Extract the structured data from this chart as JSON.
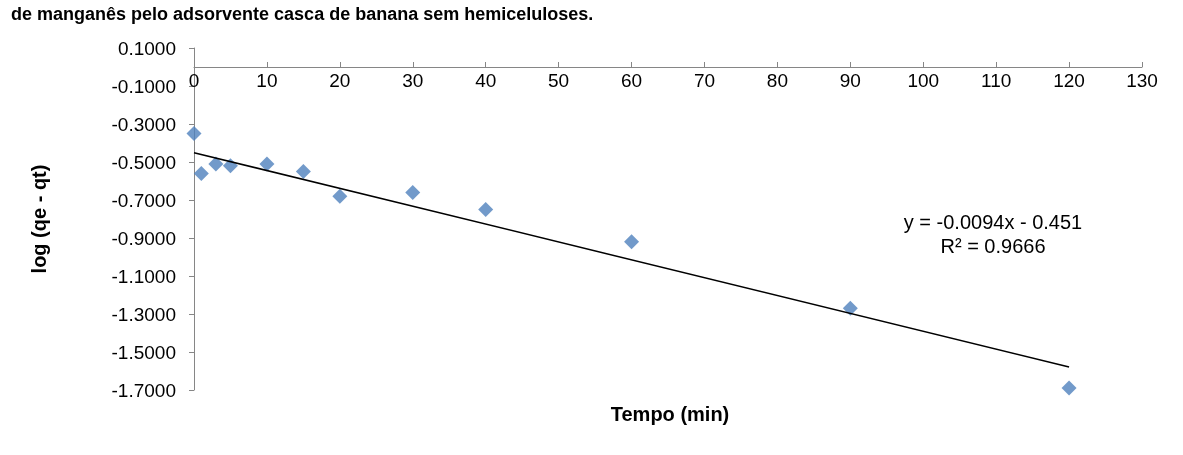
{
  "chart_data": {
    "type": "scatter",
    "title": "de manganês pelo adsorvente casca de banana sem hemiceluloses.",
    "xlabel": "Tempo (min)",
    "ylabel": "log (qe - qt)",
    "series": [
      {
        "type": "scatter",
        "color": "#4f81bd",
        "marker": "diamond",
        "x": [
          0,
          1,
          3,
          5,
          10,
          15,
          20,
          30,
          40,
          60,
          90,
          120
        ],
        "values": [
          -0.35,
          -0.56,
          -0.51,
          -0.52,
          -0.51,
          -0.55,
          -0.68,
          -0.66,
          -0.75,
          -0.92,
          -1.27,
          -1.69
        ]
      },
      {
        "type": "line",
        "color": "#000000",
        "marker": "none",
        "line_style": "solid",
        "x": [
          0,
          120
        ],
        "values": [
          -0.451,
          -1.579
        ]
      }
    ],
    "xlim": [
      0,
      130
    ],
    "xticks": [
      0,
      10,
      20,
      30,
      40,
      50,
      60,
      70,
      80,
      90,
      100,
      110,
      120,
      130
    ],
    "ylim": [
      -1.7,
      0.1
    ],
    "yticks": [
      {
        "value": 0.1,
        "label": "0.1000"
      },
      {
        "value": -0.1,
        "label": "-0.1000"
      },
      {
        "value": -0.3,
        "label": "-0.3000"
      },
      {
        "value": -0.5,
        "label": "-0.5000"
      },
      {
        "value": -0.7,
        "label": "-0.7000"
      },
      {
        "value": -0.9,
        "label": "-0.9000"
      },
      {
        "value": -1.1,
        "label": "-1.1000"
      },
      {
        "value": -1.3,
        "label": "-1.3000"
      },
      {
        "value": -1.5,
        "label": "-1.5000"
      },
      {
        "value": -1.7,
        "label": "-1.7000"
      }
    ],
    "annotations": [
      "y = -0.0094x - 0.451",
      "R² = 0.9666"
    ],
    "grid": false
  }
}
